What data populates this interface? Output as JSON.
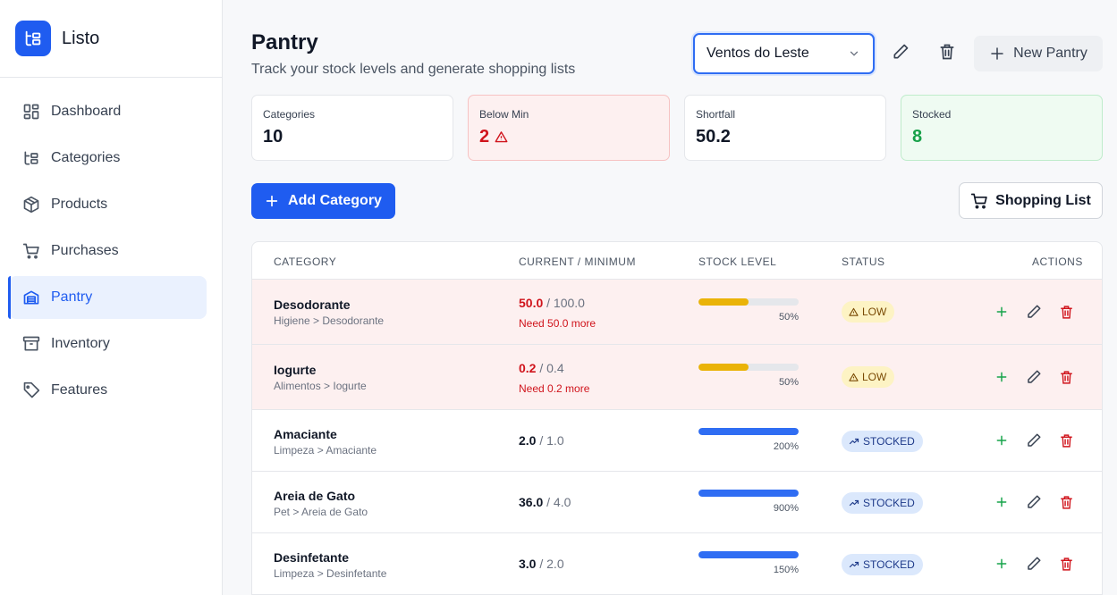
{
  "app": {
    "name": "Listo"
  },
  "sidebar": {
    "items": [
      {
        "label": "Dashboard",
        "icon": "dashboard-icon"
      },
      {
        "label": "Categories",
        "icon": "categories-icon"
      },
      {
        "label": "Products",
        "icon": "box-icon"
      },
      {
        "label": "Purchases",
        "icon": "cart-icon"
      },
      {
        "label": "Pantry",
        "icon": "pantry-icon",
        "active": true
      },
      {
        "label": "Inventory",
        "icon": "archive-icon"
      },
      {
        "label": "Features",
        "icon": "tag-icon"
      }
    ]
  },
  "header": {
    "title": "Pantry",
    "subtitle": "Track your stock levels and generate shopping lists",
    "pantry_selected": "Ventos do Leste",
    "new_pantry_label": "New Pantry"
  },
  "stats": [
    {
      "label": "Categories",
      "value": "10"
    },
    {
      "label": "Below Min",
      "value": "2"
    },
    {
      "label": "Shortfall",
      "value": "50.2"
    },
    {
      "label": "Stocked",
      "value": "8"
    }
  ],
  "actions": {
    "add_category": "Add Category",
    "shopping_list": "Shopping List"
  },
  "table": {
    "columns": [
      "CATEGORY",
      "CURRENT / MINIMUM",
      "STOCK LEVEL",
      "STATUS",
      "ACTIONS"
    ],
    "rows": [
      {
        "name": "Desodorante",
        "path": "Higiene > Desodorante",
        "current": "50.0",
        "minimum": "/ 100.0",
        "need": "Need 50.0 more",
        "level": 0.5,
        "pct": "50%",
        "status": "LOW"
      },
      {
        "name": "Iogurte",
        "path": "Alimentos > Iogurte",
        "current": "0.2",
        "minimum": "/ 0.4",
        "need": "Need 0.2 more",
        "level": 0.5,
        "pct": "50%",
        "status": "LOW"
      },
      {
        "name": "Amaciante",
        "path": "Limpeza > Amaciante",
        "current": "2.0",
        "minimum": "/ 1.0",
        "need": "",
        "level": 1,
        "pct": "200%",
        "status": "STOCKED"
      },
      {
        "name": "Areia de Gato",
        "path": "Pet > Areia de Gato",
        "current": "36.0",
        "minimum": "/ 4.0",
        "need": "",
        "level": 1,
        "pct": "900%",
        "status": "STOCKED"
      },
      {
        "name": "Desinfetante",
        "path": "Limpeza > Desinfetante",
        "current": "3.0",
        "minimum": "/ 2.0",
        "need": "",
        "level": 1,
        "pct": "150%",
        "status": "STOCKED"
      }
    ]
  },
  "colors": {
    "accent": "#1f5cf0",
    "danger": "#d0141c",
    "success": "#18a14a",
    "warn_bar": "#eab308",
    "ok_bar": "#2f6df3"
  }
}
